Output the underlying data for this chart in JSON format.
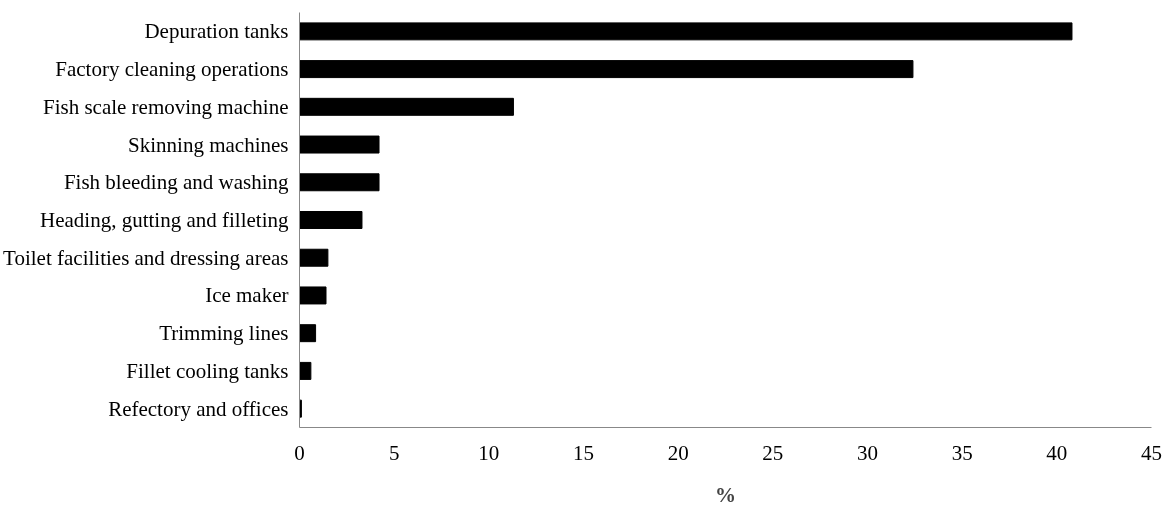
{
  "chart_data": {
    "type": "bar",
    "orientation": "horizontal",
    "xlabel": "%",
    "categories": [
      "Depuration tanks",
      "Factory cleaning operations",
      "Fish scale removing machine",
      "Skinning machines",
      "Fish bleeding and washing",
      "Heading, gutting and filleting",
      "Toilet facilities and dressing areas",
      "Ice maker",
      "Trimming lines",
      "Fillet cooling tanks",
      "Refectory and offices"
    ],
    "values": [
      40.8,
      32.4,
      11.3,
      4.2,
      4.2,
      3.3,
      1.5,
      1.4,
      0.85,
      0.6,
      0.1
    ],
    "color": "#000000",
    "xlim": [
      0,
      45
    ],
    "xticks": [
      0,
      5,
      10,
      15,
      20,
      25,
      30,
      35,
      40,
      45
    ],
    "grid": false
  }
}
